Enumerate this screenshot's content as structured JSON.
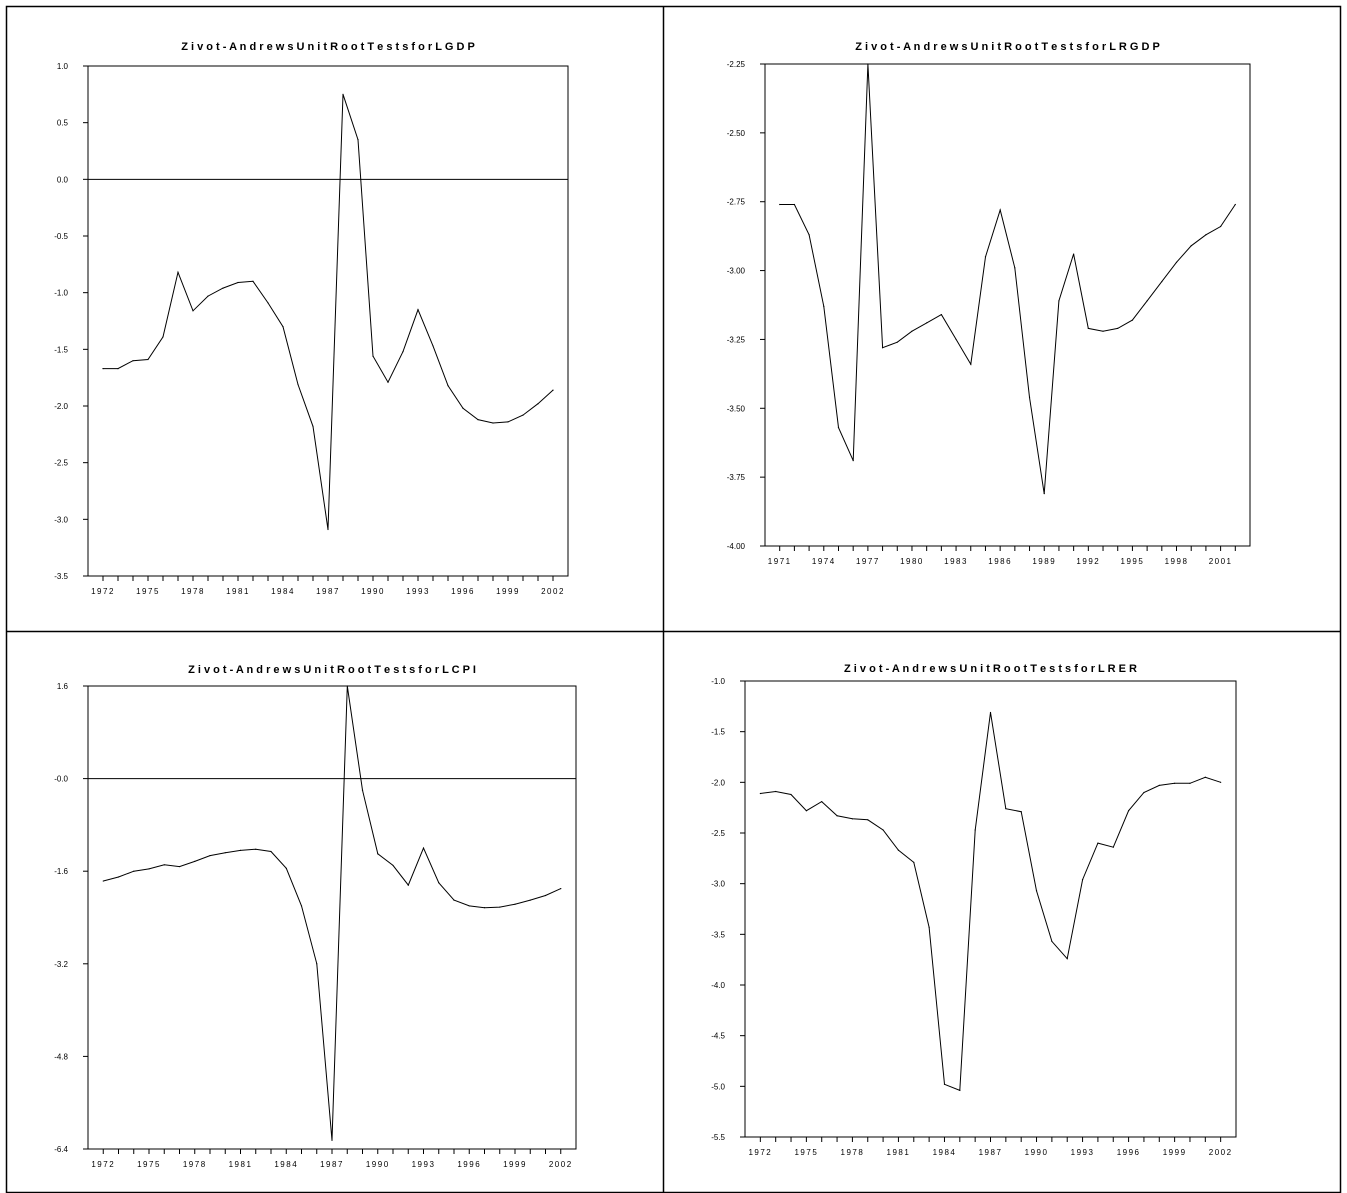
{
  "chart_data": [
    {
      "type": "line",
      "title": "Z i v o t - A n d r e w s   U n i t   R o o t   T e s t s   f o r   L G D P",
      "xlabel": "",
      "ylabel": "",
      "x": [
        1972,
        1973,
        1974,
        1975,
        1976,
        1977,
        1978,
        1979,
        1980,
        1981,
        1982,
        1983,
        1984,
        1985,
        1986,
        1987,
        1988,
        1989,
        1990,
        1991,
        1992,
        1993,
        1994,
        1995,
        1996,
        1997,
        1998,
        1999,
        2000,
        2001,
        2002
      ],
      "values": [
        -1.67,
        -1.67,
        -1.6,
        -1.59,
        -1.39,
        -0.82,
        -1.16,
        -1.03,
        -0.96,
        -0.91,
        -0.9,
        -1.09,
        -1.3,
        -1.81,
        -2.18,
        -3.09,
        0.75,
        0.35,
        -1.56,
        -1.79,
        -1.52,
        -1.15,
        -1.47,
        -1.82,
        -2.02,
        -2.12,
        -2.15,
        -2.14,
        -2.08,
        -1.98,
        -1.86
      ],
      "x_ticks": [
        "1972",
        "1975",
        "1978",
        "1981",
        "1984",
        "1987",
        "1990",
        "1993",
        "1996",
        "1999",
        "2002"
      ],
      "y_ticks": [
        "1.0",
        "0.5",
        "0.0",
        "-0.5",
        "-1.0",
        "-1.5",
        "-2.0",
        "-2.5",
        "-3.0",
        "-3.5"
      ],
      "ylim": [
        -3.5,
        1.0
      ],
      "zero_line": true
    },
    {
      "type": "line",
      "title": "Z i v o t - A n d r e w s   U n i t   R o o t   T e s t s   f o r   L R G D P",
      "xlabel": "",
      "ylabel": "",
      "x": [
        1971,
        1972,
        1973,
        1974,
        1975,
        1976,
        1977,
        1978,
        1979,
        1980,
        1981,
        1982,
        1983,
        1984,
        1985,
        1986,
        1987,
        1988,
        1989,
        1990,
        1991,
        1992,
        1993,
        1994,
        1995,
        1996,
        1997,
        1998,
        1999,
        2000,
        2001,
        2002
      ],
      "values": [
        -2.76,
        -2.76,
        -2.87,
        -3.13,
        -3.57,
        -3.69,
        -2.25,
        -3.28,
        -3.26,
        -3.22,
        -3.19,
        -3.16,
        -3.25,
        -3.34,
        -2.95,
        -2.78,
        -2.99,
        -3.46,
        -3.81,
        -3.11,
        -2.94,
        -3.21,
        -3.22,
        -3.21,
        -3.18,
        -3.11,
        -3.04,
        -2.97,
        -2.91,
        -2.87,
        -2.84,
        -2.76
      ],
      "x_ticks": [
        "1971",
        "1974",
        "1977",
        "1980",
        "1983",
        "1986",
        "1989",
        "1992",
        "1995",
        "1998",
        "2001"
      ],
      "y_ticks": [
        "-2.25",
        "-2.50",
        "-2.75",
        "-3.00",
        "-3.25",
        "-3.50",
        "-3.75",
        "-4.00"
      ],
      "ylim": [
        -4.0,
        -2.25
      ],
      "zero_line": false
    },
    {
      "type": "line",
      "title": "Z i v o t - A n d r e w s   U n i t   R o o t   T e s t s   f o r   L C P I",
      "xlabel": "",
      "ylabel": "",
      "x": [
        1972,
        1973,
        1974,
        1975,
        1976,
        1977,
        1978,
        1979,
        1980,
        1981,
        1982,
        1983,
        1984,
        1985,
        1986,
        1987,
        1988,
        1989,
        1990,
        1991,
        1992,
        1993,
        1994,
        1995,
        1996,
        1997,
        1998,
        1999,
        2000,
        2001,
        2002
      ],
      "values": [
        -1.77,
        -1.7,
        -1.6,
        -1.56,
        -1.49,
        -1.52,
        -1.43,
        -1.33,
        -1.28,
        -1.24,
        -1.22,
        -1.26,
        -1.55,
        -2.2,
        -3.2,
        -6.25,
        1.6,
        -0.2,
        -1.3,
        -1.5,
        -1.84,
        -1.2,
        -1.8,
        -2.1,
        -2.2,
        -2.23,
        -2.22,
        -2.17,
        -2.1,
        -2.02,
        -1.9
      ],
      "x_ticks": [
        "1972",
        "1975",
        "1978",
        "1981",
        "1984",
        "1987",
        "1990",
        "1993",
        "1996",
        "1999",
        "2002"
      ],
      "y_ticks": [
        "1.6",
        "-0.0",
        "-1.6",
        "-3.2",
        "-4.8",
        "-6.4"
      ],
      "ylim": [
        -6.4,
        1.6
      ],
      "zero_line": true
    },
    {
      "type": "line",
      "title": "Z i v o t - A n d r e w s   U n i t   R o o t   T e s t s   f o r   L R E R",
      "xlabel": "",
      "ylabel": "",
      "x": [
        1972,
        1973,
        1974,
        1975,
        1976,
        1977,
        1978,
        1979,
        1980,
        1981,
        1982,
        1983,
        1984,
        1985,
        1986,
        1987,
        1988,
        1989,
        1990,
        1991,
        1992,
        1993,
        1994,
        1995,
        1996,
        1997,
        1998,
        1999,
        2000,
        2001,
        2002
      ],
      "values": [
        -2.11,
        -2.09,
        -2.12,
        -2.28,
        -2.19,
        -2.33,
        -2.36,
        -2.37,
        -2.47,
        -2.67,
        -2.79,
        -3.43,
        -4.98,
        -5.04,
        -2.47,
        -1.31,
        -2.26,
        -2.29,
        -3.07,
        -3.57,
        -3.74,
        -2.96,
        -2.6,
        -2.64,
        -2.28,
        -2.1,
        -2.03,
        -2.01,
        -2.01,
        -1.95,
        -2.0
      ],
      "x_ticks": [
        "1972",
        "1975",
        "1978",
        "1981",
        "1984",
        "1987",
        "1990",
        "1993",
        "1996",
        "1999",
        "2002"
      ],
      "y_ticks": [
        "-1.0",
        "-1.5",
        "-2.0",
        "-2.5",
        "-3.0",
        "-3.5",
        "-4.0",
        "-4.5",
        "-5.0",
        "-5.5"
      ],
      "ylim": [
        -5.5,
        -1.0
      ],
      "zero_line": false
    }
  ]
}
